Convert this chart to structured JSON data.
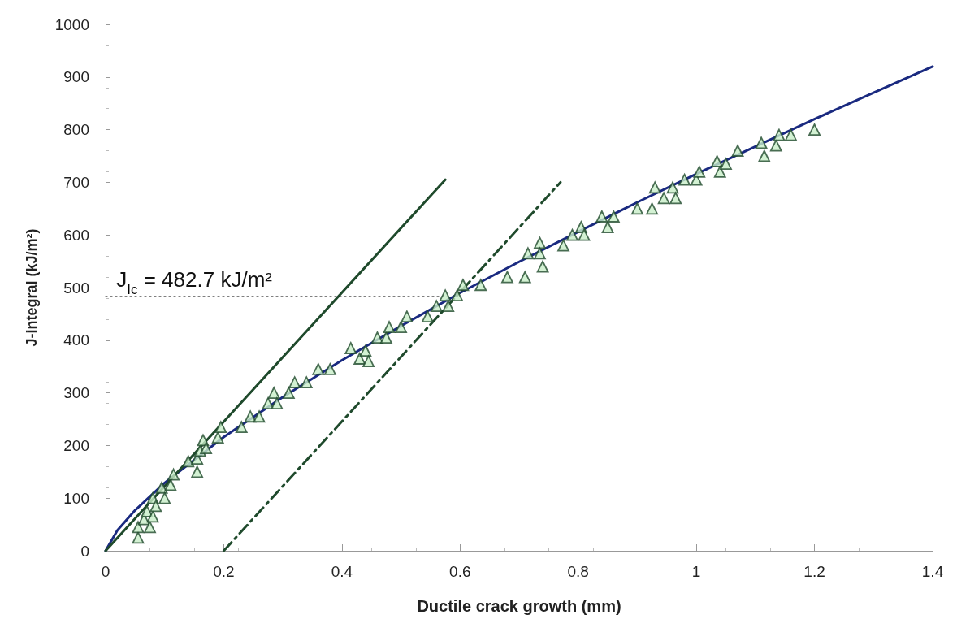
{
  "chart_data": {
    "type": "scatter",
    "xlabel": "Ductile crack growth (mm)",
    "ylabel": "J-integral (kJ/m²)",
    "xlim": [
      0,
      1.4
    ],
    "xticks": [
      0,
      0.2,
      0.4,
      0.6,
      0.8,
      1,
      1.2,
      1.4
    ],
    "ylim": [
      0,
      1000
    ],
    "yticks": [
      0,
      100,
      200,
      300,
      400,
      500,
      600,
      700,
      800,
      900,
      1000
    ],
    "grid": false,
    "annotations": [
      {
        "text": "J$_{Ic}$ = 482.7 kJ/m²",
        "x": 0.01,
        "y": 482.7
      }
    ],
    "series": [
      {
        "marker": "triangle",
        "color": "#c8eec8",
        "x": [
          0.055,
          0.055,
          0.065,
          0.075,
          0.07,
          0.08,
          0.08,
          0.085,
          0.095,
          0.1,
          0.11,
          0.115,
          0.14,
          0.155,
          0.155,
          0.16,
          0.165,
          0.17,
          0.19,
          0.195,
          0.23,
          0.245,
          0.26,
          0.275,
          0.285,
          0.29,
          0.31,
          0.32,
          0.34,
          0.36,
          0.38,
          0.415,
          0.43,
          0.44,
          0.445,
          0.46,
          0.475,
          0.48,
          0.5,
          0.51,
          0.545,
          0.56,
          0.575,
          0.58,
          0.595,
          0.605,
          0.635,
          0.68,
          0.71,
          0.715,
          0.735,
          0.735,
          0.74,
          0.775,
          0.79,
          0.805,
          0.81,
          0.84,
          0.85,
          0.86,
          0.9,
          0.925,
          0.93,
          0.945,
          0.96,
          0.965,
          0.98,
          1.0,
          1.005,
          1.035,
          1.04,
          1.05,
          1.07,
          1.11,
          1.115,
          1.135,
          1.14,
          1.16,
          1.2
        ],
        "values": [
          25,
          45,
          60,
          45,
          75,
          65,
          100,
          85,
          120,
          100,
          125,
          145,
          170,
          150,
          175,
          190,
          210,
          195,
          215,
          235,
          235,
          255,
          255,
          280,
          300,
          280,
          300,
          320,
          320,
          345,
          345,
          385,
          365,
          380,
          360,
          405,
          405,
          425,
          425,
          445,
          445,
          465,
          485,
          465,
          485,
          505,
          505,
          520,
          520,
          565,
          585,
          565,
          540,
          580,
          600,
          615,
          600,
          635,
          615,
          635,
          650,
          650,
          690,
          670,
          690,
          670,
          705,
          705,
          720,
          740,
          720,
          735,
          760,
          775,
          750,
          770,
          790,
          790,
          800
        ]
      },
      {
        "type": "line",
        "color": "#1a2a80",
        "line_style": "solid",
        "marker": "none",
        "x": [
          0,
          0.02,
          0.05,
          0.1,
          0.2,
          0.3,
          0.4,
          0.5,
          0.6,
          0.7,
          0.8,
          0.9,
          1.0,
          1.1,
          1.2,
          1.3,
          1.4
        ],
        "values": [
          0,
          39,
          77,
          129,
          216,
          292,
          362,
          427,
          490,
          549,
          606,
          662,
          716,
          768,
          820,
          870,
          920
        ]
      },
      {
        "type": "line",
        "color": "#1f4a2c",
        "line_style": "solid",
        "marker": "none",
        "x": [
          0,
          0.575
        ],
        "values": [
          0,
          705
        ]
      },
      {
        "type": "line",
        "color": "#1f4a2c",
        "line_style": "dashdot",
        "marker": "none",
        "x": [
          0.2,
          0.77
        ],
        "values": [
          0,
          700
        ]
      },
      {
        "type": "line",
        "color": "#000000",
        "line_style": "dotted",
        "marker": "none",
        "x": [
          0,
          0.58
        ],
        "values": [
          482.7,
          482.7
        ]
      }
    ]
  }
}
